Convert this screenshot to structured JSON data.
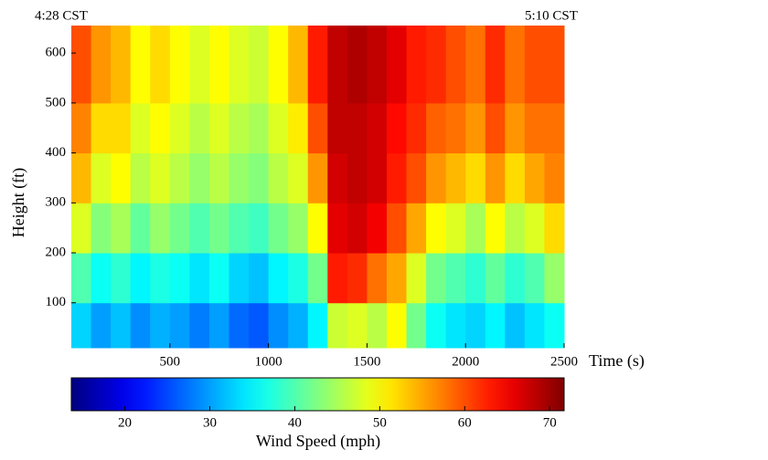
{
  "chart_data": {
    "type": "heatmap",
    "annotations": [
      "4:28 CST",
      "5:10 CST"
    ],
    "xlabel": "Time (s)",
    "ylabel": "Height (ft)",
    "colorbar_label": "Wind Speed (mph)",
    "colormap": "jet",
    "x_edges": [
      0,
      100,
      200,
      300,
      400,
      500,
      600,
      700,
      800,
      900,
      1000,
      1100,
      1200,
      1300,
      1400,
      1500,
      1600,
      1700,
      1800,
      1900,
      2000,
      2100,
      2200,
      2300,
      2400,
      2500
    ],
    "y_edges": [
      10,
      100,
      200,
      300,
      400,
      500,
      655
    ],
    "z": [
      [
        33,
        30,
        32,
        29,
        31,
        30,
        28,
        30,
        27,
        26,
        29,
        31,
        35,
        47,
        48,
        46,
        50,
        42,
        36,
        34,
        33,
        35,
        32,
        34,
        36
      ],
      [
        40,
        36,
        38,
        35,
        37,
        36,
        34,
        36,
        33,
        32,
        35,
        37,
        42,
        63,
        62,
        58,
        55,
        48,
        42,
        40,
        38,
        41,
        38,
        40,
        44
      ],
      [
        48,
        43,
        45,
        41,
        44,
        42,
        40,
        42,
        40,
        39,
        42,
        44,
        50,
        66,
        67,
        65,
        60,
        55,
        50,
        48,
        45,
        50,
        46,
        48,
        52
      ],
      [
        54,
        48,
        50,
        46,
        48,
        46,
        44,
        46,
        44,
        43,
        46,
        48,
        56,
        67,
        68,
        67,
        63,
        60,
        56,
        54,
        52,
        56,
        52,
        55,
        57
      ],
      [
        57,
        52,
        52,
        48,
        50,
        48,
        46,
        48,
        46,
        45,
        48,
        51,
        60,
        68,
        68,
        67,
        64,
        62,
        59,
        58,
        56,
        60,
        56,
        58,
        58
      ],
      [
        60,
        56,
        54,
        50,
        52,
        50,
        48,
        50,
        48,
        47,
        50,
        54,
        63,
        68,
        69,
        68,
        66,
        63,
        62,
        60,
        58,
        62,
        58,
        60,
        60
      ]
    ],
    "xlim": [
      0,
      2500
    ],
    "ylim": [
      10,
      655
    ],
    "xticks": [
      500,
      1000,
      1500,
      2000,
      2500
    ],
    "yticks": [
      100,
      200,
      300,
      400,
      500,
      600
    ],
    "clim": [
      13.7,
      71.7
    ],
    "cticks": [
      20,
      30,
      40,
      50,
      60,
      70
    ]
  }
}
